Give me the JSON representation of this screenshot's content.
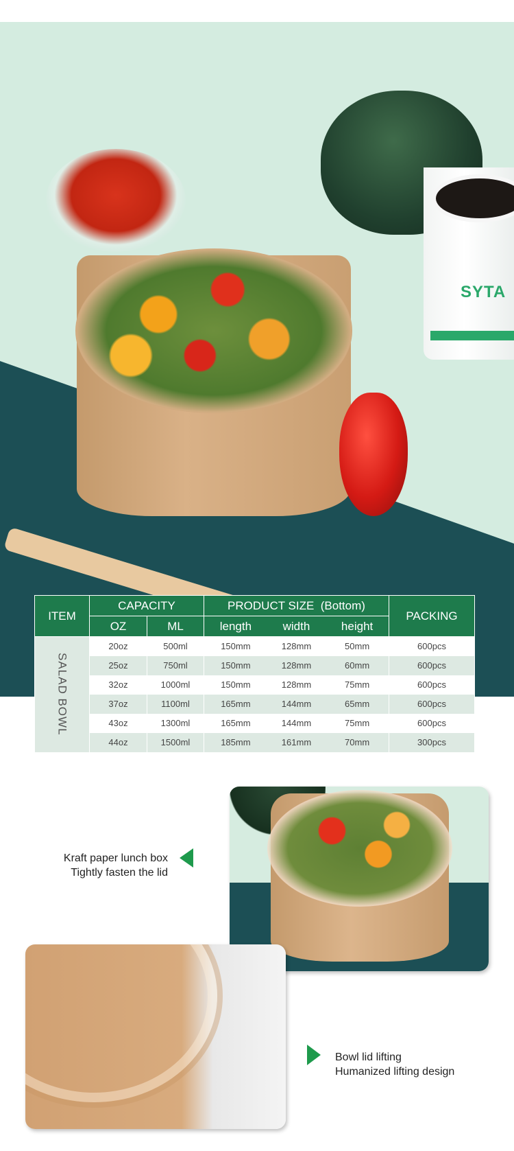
{
  "hero": {
    "cup_logo": "SYTA"
  },
  "table": {
    "headers": {
      "item": "ITEM",
      "capacity": "CAPACITY",
      "product_size": "PRODUCT SIZE  (Bottom)",
      "packing": "PACKING",
      "oz": "OZ",
      "ml": "ML",
      "length": "length",
      "width": "width",
      "height": "height"
    },
    "item_name": "SALAD BOWL",
    "rows": [
      {
        "oz": "20oz",
        "ml": "500ml",
        "length": "150mm",
        "width": "128mm",
        "height": "50mm",
        "packing": "600pcs"
      },
      {
        "oz": "25oz",
        "ml": "750ml",
        "length": "150mm",
        "width": "128mm",
        "height": "60mm",
        "packing": "600pcs"
      },
      {
        "oz": "32oz",
        "ml": "1000ml",
        "length": "150mm",
        "width": "128mm",
        "height": "75mm",
        "packing": "600pcs"
      },
      {
        "oz": "37oz",
        "ml": "1100ml",
        "length": "165mm",
        "width": "144mm",
        "height": "65mm",
        "packing": "600pcs"
      },
      {
        "oz": "43oz",
        "ml": "1300ml",
        "length": "165mm",
        "width": "144mm",
        "height": "75mm",
        "packing": "600pcs"
      },
      {
        "oz": "44oz",
        "ml": "1500ml",
        "length": "185mm",
        "width": "161mm",
        "height": "70mm",
        "packing": "300pcs"
      }
    ]
  },
  "features": [
    {
      "line1": "Kraft paper lunch box",
      "line2": "Tightly fasten the lid"
    },
    {
      "line1": "Bowl lid lifting",
      "line2": "Humanized lifting design"
    }
  ],
  "colors": {
    "header_green": "#1e7b4c",
    "row_alt": "#dde9e2",
    "arrow_green": "#1e9a4c",
    "teal": "#1c4f55",
    "mint": "#d4ece0"
  }
}
